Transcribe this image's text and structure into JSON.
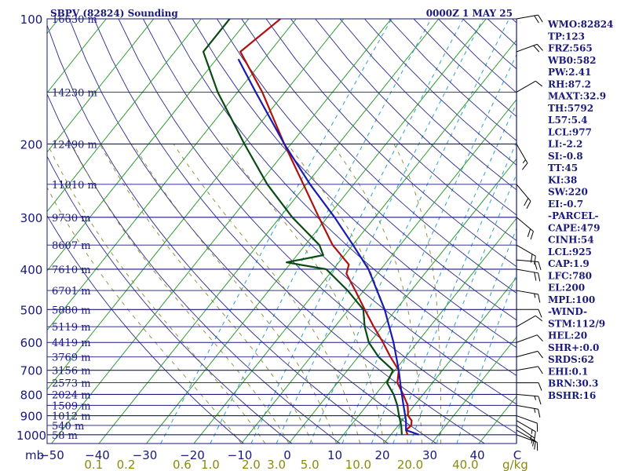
{
  "chart_data": {
    "type": "line",
    "title": "SBPV (82824) Sounding",
    "datetime": "0000Z  1 MAY 25",
    "pressure_unit": "mb",
    "mixing_ratio_unit": "g/kg",
    "pressure_levels": [
      100,
      200,
      300,
      400,
      500,
      600,
      700,
      800,
      900,
      1000
    ],
    "pressure_labels": [
      "100",
      "200",
      "300",
      "400",
      "500",
      "600",
      "700",
      "800",
      "900",
      "1000"
    ],
    "height_levels": [
      {
        "p": 100,
        "label": "16630 m"
      },
      {
        "p": 150,
        "label": "14230 m"
      },
      {
        "p": 200,
        "label": "12490 m"
      },
      {
        "p": 250,
        "label": "11010 m"
      },
      {
        "p": 300,
        "label": "9730 m"
      },
      {
        "p": 350,
        "label": "8607 m"
      },
      {
        "p": 400,
        "label": "7610 m"
      },
      {
        "p": 450,
        "label": "6701 m"
      },
      {
        "p": 500,
        "label": "5880 m"
      },
      {
        "p": 550,
        "label": "5119 m"
      },
      {
        "p": 600,
        "label": "4419 m"
      },
      {
        "p": 650,
        "label": "3769 m"
      },
      {
        "p": 700,
        "label": "3156 m"
      },
      {
        "p": 750,
        "label": "2573 m"
      },
      {
        "p": 800,
        "label": "2024 m"
      },
      {
        "p": 850,
        "label": "1509 m"
      },
      {
        "p": 900,
        "label": "1012 m"
      },
      {
        "p": 950,
        "label": "540 m"
      },
      {
        "p": 1000,
        "label": "58 m"
      }
    ],
    "temperature_ticks": [
      {
        "t": -40,
        "label": "−40"
      },
      {
        "t": -30,
        "label": "−30"
      },
      {
        "t": -20,
        "label": "−20"
      },
      {
        "t": -10,
        "label": "−10"
      },
      {
        "t": 0,
        "label": "0"
      },
      {
        "t": 10,
        "label": "10"
      },
      {
        "t": 20,
        "label": "20"
      },
      {
        "t": 30,
        "label": "30"
      },
      {
        "t": 40,
        "label": "40"
      }
    ],
    "temperature_edge_labels": {
      "left": "−50",
      "right": "C"
    },
    "mixing_ratio_labels": [
      {
        "w": 0.1,
        "label": "0.1"
      },
      {
        "w": 0.2,
        "label": "0.2"
      },
      {
        "w": 0.6,
        "label": "0.6"
      },
      {
        "w": 1.0,
        "label": "1.0"
      },
      {
        "w": 2.0,
        "label": "2.0"
      },
      {
        "w": 3.0,
        "label": "3.0"
      },
      {
        "w": 5.0,
        "label": "5.0"
      },
      {
        "w": 10.0,
        "label": "10.0"
      },
      {
        "w": 20.0,
        "label": "20.0"
      },
      {
        "w": 40.0,
        "label": "40.0"
      }
    ],
    "mixing_ratio_lines": [
      0.4,
      1,
      2,
      3,
      5,
      8,
      12,
      16,
      20,
      28,
      36
    ],
    "series": [
      {
        "name": "temperature",
        "color": "#b01010",
        "points": [
          {
            "p": 1000,
            "t": 23.5
          },
          {
            "p": 975,
            "t": 22.4
          },
          {
            "p": 950,
            "t": 22.7
          },
          {
            "p": 925,
            "t": 22.0
          },
          {
            "p": 900,
            "t": 20.4
          },
          {
            "p": 850,
            "t": 18.6
          },
          {
            "p": 800,
            "t": 15.8
          },
          {
            "p": 750,
            "t": 12.6
          },
          {
            "p": 700,
            "t": 10.8
          },
          {
            "p": 650,
            "t": 6.8
          },
          {
            "p": 600,
            "t": 2.8
          },
          {
            "p": 550,
            "t": -1.8
          },
          {
            "p": 500,
            "t": -6.6
          },
          {
            "p": 450,
            "t": -11.8
          },
          {
            "p": 410,
            "t": -16.5
          },
          {
            "p": 390,
            "t": -17.5
          },
          {
            "p": 350,
            "t": -24.2
          },
          {
            "p": 300,
            "t": -31.8
          },
          {
            "p": 250,
            "t": -40.6
          },
          {
            "p": 200,
            "t": -51.4
          },
          {
            "p": 150,
            "t": -64.8
          },
          {
            "p": 120,
            "t": -76.2
          },
          {
            "p": 100,
            "t": -73.3
          }
        ]
      },
      {
        "name": "dewpoint",
        "color": "#0a4a14",
        "points": [
          {
            "p": 1000,
            "t": 22.3
          },
          {
            "p": 950,
            "t": 20.6
          },
          {
            "p": 900,
            "t": 18.5
          },
          {
            "p": 850,
            "t": 16.4
          },
          {
            "p": 800,
            "t": 13.8
          },
          {
            "p": 750,
            "t": 10.4
          },
          {
            "p": 700,
            "t": 9.6
          },
          {
            "p": 650,
            "t": 4.3
          },
          {
            "p": 600,
            "t": -0.2
          },
          {
            "p": 550,
            "t": -3.7
          },
          {
            "p": 500,
            "t": -6.9
          },
          {
            "p": 450,
            "t": -13.4
          },
          {
            "p": 400,
            "t": -21.5
          },
          {
            "p": 385,
            "t": -31.0
          },
          {
            "p": 370,
            "t": -24.5
          },
          {
            "p": 350,
            "t": -27.0
          },
          {
            "p": 300,
            "t": -37.4
          },
          {
            "p": 250,
            "t": -48.2
          },
          {
            "p": 200,
            "t": -59.8
          },
          {
            "p": 150,
            "t": -74.2
          },
          {
            "p": 120,
            "t": -84.0
          },
          {
            "p": 100,
            "t": -84.0
          }
        ]
      },
      {
        "name": "parcel",
        "color": "#1a1ab0",
        "points": [
          {
            "p": 1000,
            "t": 25.9
          },
          {
            "p": 975,
            "t": 22.4
          },
          {
            "p": 925,
            "t": 20.8
          },
          {
            "p": 850,
            "t": 17.7
          },
          {
            "p": 780,
            "t": 14.6
          },
          {
            "p": 700,
            "t": 10.8
          },
          {
            "p": 600,
            "t": 5.0
          },
          {
            "p": 500,
            "t": -2.4
          },
          {
            "p": 400,
            "t": -12.6
          },
          {
            "p": 350,
            "t": -19.9
          },
          {
            "p": 300,
            "t": -28.5
          },
          {
            "p": 250,
            "t": -39.2
          },
          {
            "p": 200,
            "t": -51.4
          },
          {
            "p": 150,
            "t": -66.2
          },
          {
            "p": 125,
            "t": -75.4
          }
        ]
      }
    ],
    "wind_barbs": [
      {
        "p": 1000,
        "dir": 110,
        "spd": 10
      },
      {
        "p": 975,
        "dir": 120,
        "spd": 15
      },
      {
        "p": 950,
        "dir": 125,
        "spd": 15
      },
      {
        "p": 925,
        "dir": 120,
        "spd": 15
      },
      {
        "p": 900,
        "dir": 110,
        "spd": 10
      },
      {
        "p": 850,
        "dir": 100,
        "spd": 15
      },
      {
        "p": 800,
        "dir": 95,
        "spd": 15
      },
      {
        "p": 750,
        "dir": 90,
        "spd": 10
      },
      {
        "p": 700,
        "dir": 80,
        "spd": 10
      },
      {
        "p": 650,
        "dir": 75,
        "spd": 10
      },
      {
        "p": 600,
        "dir": 70,
        "spd": 10
      },
      {
        "p": 550,
        "dir": 60,
        "spd": 10
      },
      {
        "p": 500,
        "dir": 90,
        "spd": 10
      },
      {
        "p": 450,
        "dir": 100,
        "spd": 15
      },
      {
        "p": 400,
        "dir": 100,
        "spd": 20
      },
      {
        "p": 380,
        "dir": 95,
        "spd": 20
      },
      {
        "p": 350,
        "dir": 120,
        "spd": 20
      },
      {
        "p": 300,
        "dir": 130,
        "spd": 20
      },
      {
        "p": 250,
        "dir": 140,
        "spd": 20
      },
      {
        "p": 200,
        "dir": 150,
        "spd": 15
      },
      {
        "p": 150,
        "dir": 60,
        "spd": 10
      },
      {
        "p": 120,
        "dir": 70,
        "spd": 20
      },
      {
        "p": 100,
        "dir": 80,
        "spd": 20
      }
    ],
    "indices": [
      "WMO:82824",
      "TP:123",
      "FRZ:565",
      "WB0:582",
      "PW:2.41",
      "RH:87.2",
      "MAXT:32.9",
      "TH:5792",
      "L57:5.4",
      "LCL:977",
      "LI:-2.2",
      "SI:-0.8",
      "TT:45",
      "KI:38",
      "SW:220",
      "EI:-0.7",
      "-PARCEL-",
      "CAPE:479",
      "CINH:54",
      "LCL:925",
      "CAP:1.9",
      "LFC:780",
      "EL:200",
      "MPL:100",
      "-WIND-",
      "STM:112/9",
      "HEL:20",
      "SHR+:0.0",
      "SRDS:62",
      "EHI:0.1",
      "BRN:30.3",
      "BSHR:16"
    ],
    "grid": true,
    "legend": "none"
  }
}
